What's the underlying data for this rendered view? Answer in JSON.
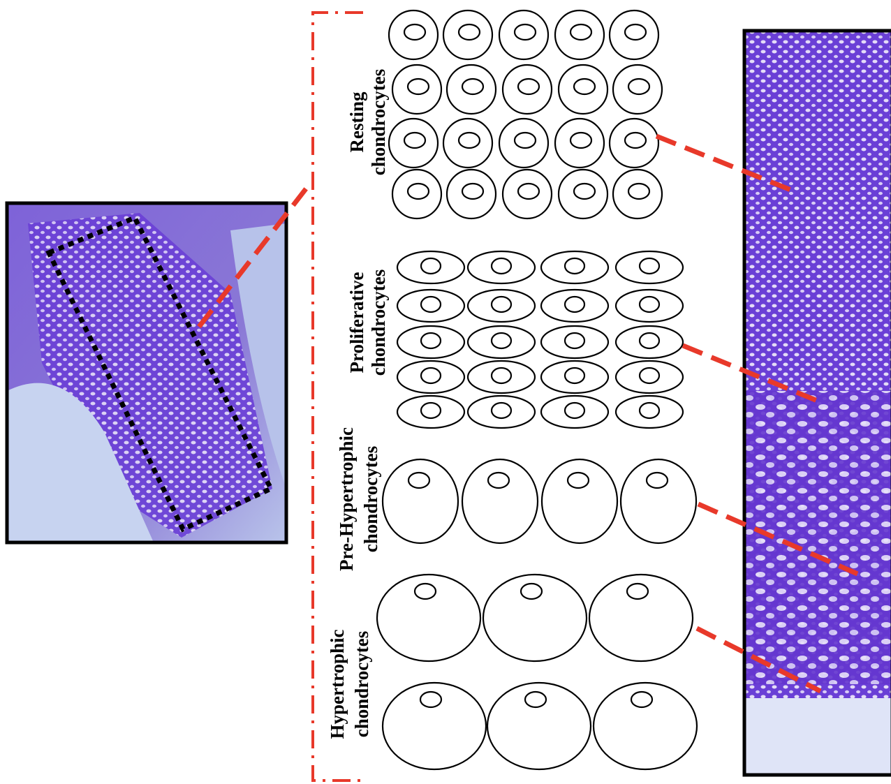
{
  "zones": [
    {
      "lines": [
        "Resting",
        "chondrocytes"
      ]
    },
    {
      "lines": [
        "Proliferative",
        "chondrocytes"
      ]
    },
    {
      "lines": [
        "Pre-Hypertrophic",
        "chondrocytes"
      ]
    },
    {
      "lines": [
        "Hypertrophic",
        "chondrocytes"
      ]
    }
  ]
}
